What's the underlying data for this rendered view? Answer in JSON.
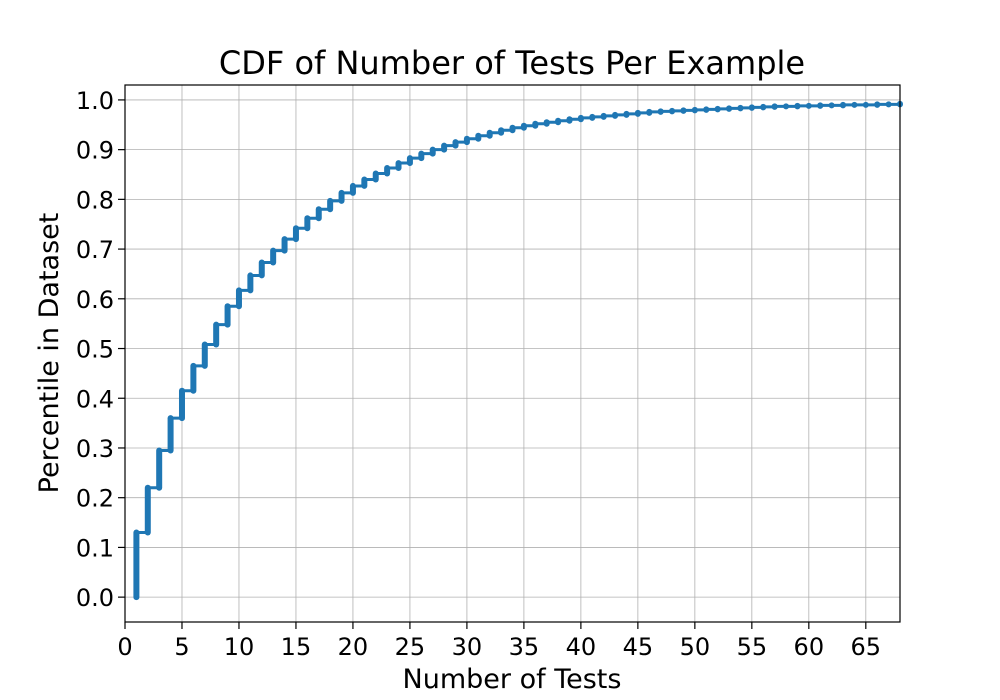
{
  "chart_data": {
    "type": "line",
    "title": "CDF of Number of Tests Per Example",
    "xlabel": "Number of Tests",
    "ylabel": "Percentile in Dataset",
    "xlim": [
      0,
      68
    ],
    "ylim": [
      -0.05,
      1.03
    ],
    "xticks": [
      0,
      5,
      10,
      15,
      20,
      25,
      30,
      35,
      40,
      45,
      50,
      55,
      60,
      65
    ],
    "yticks": [
      0.0,
      0.1,
      0.2,
      0.3,
      0.4,
      0.5,
      0.6,
      0.7,
      0.8,
      0.9,
      1.0
    ],
    "grid": true,
    "line_color": "#1f77b4",
    "series": [
      {
        "x": [
          1,
          2,
          3,
          4,
          5,
          6,
          7,
          8,
          9,
          10,
          11,
          12,
          13,
          14,
          15,
          16,
          17,
          18,
          19,
          20,
          21,
          22,
          23,
          24,
          25,
          26,
          27,
          28,
          29,
          30,
          31,
          32,
          33,
          34,
          35,
          36,
          37,
          38,
          39,
          40,
          41,
          42,
          43,
          44,
          45,
          46,
          47,
          48,
          49,
          50,
          51,
          52,
          53,
          54,
          55,
          56,
          57,
          58,
          59,
          60,
          61,
          62,
          63,
          64,
          65,
          66,
          67,
          68
        ],
        "y_low": [
          0.0,
          0.13,
          0.22,
          0.295,
          0.36,
          0.415,
          0.465,
          0.508,
          0.548,
          0.585,
          0.617,
          0.647,
          0.673,
          0.697,
          0.72,
          0.742,
          0.762,
          0.78,
          0.797,
          0.813,
          0.827,
          0.84,
          0.852,
          0.863,
          0.873,
          0.883,
          0.892,
          0.9,
          0.908,
          0.915,
          0.922,
          0.928,
          0.934,
          0.939,
          0.944,
          0.948,
          0.952,
          0.955,
          0.958,
          0.961,
          0.964,
          0.966,
          0.968,
          0.97,
          0.972,
          0.974,
          0.976,
          0.977,
          0.978,
          0.979,
          0.98,
          0.981,
          0.982,
          0.983,
          0.984,
          0.985,
          0.986,
          0.987,
          0.987,
          0.988,
          0.988,
          0.989,
          0.989,
          0.99,
          0.99,
          0.99,
          0.991,
          0.991
        ],
        "y_high": [
          0.13,
          0.22,
          0.295,
          0.36,
          0.415,
          0.465,
          0.508,
          0.548,
          0.585,
          0.617,
          0.647,
          0.673,
          0.697,
          0.72,
          0.742,
          0.762,
          0.78,
          0.797,
          0.813,
          0.827,
          0.84,
          0.852,
          0.863,
          0.873,
          0.883,
          0.892,
          0.9,
          0.908,
          0.915,
          0.922,
          0.928,
          0.934,
          0.939,
          0.944,
          0.948,
          0.952,
          0.955,
          0.958,
          0.961,
          0.964,
          0.966,
          0.968,
          0.97,
          0.972,
          0.974,
          0.976,
          0.977,
          0.978,
          0.979,
          0.98,
          0.981,
          0.982,
          0.983,
          0.984,
          0.985,
          0.986,
          0.987,
          0.987,
          0.988,
          0.988,
          0.989,
          0.989,
          0.99,
          0.99,
          0.99,
          0.991,
          0.991,
          0.992
        ]
      }
    ]
  }
}
